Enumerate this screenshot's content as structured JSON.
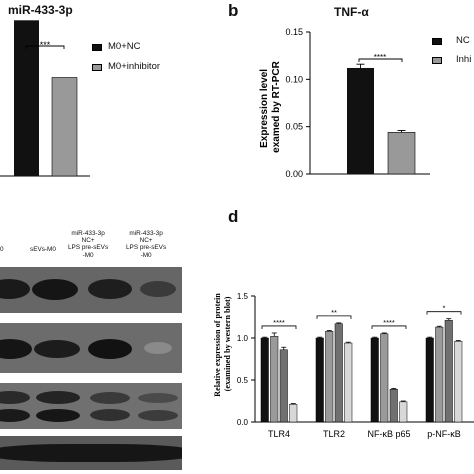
{
  "panel_a": {
    "title": "miR-433-3p",
    "significance": "***",
    "legend": [
      {
        "label": "M0+NC",
        "color": "#111111"
      },
      {
        "label": "M0+inhibitor",
        "color": "#999999"
      }
    ]
  },
  "panel_b": {
    "letter": "b",
    "title": "TNF-α",
    "ylabel_line1": "Expression level",
    "ylabel_line2": "examed by RT-PCR",
    "significance": "****",
    "legend": [
      {
        "label": "NC",
        "color": "#111111"
      },
      {
        "label": "Inhi",
        "color": "#999999"
      }
    ]
  },
  "panel_c": {
    "lanes": [
      {
        "lines": [
          "0"
        ]
      },
      {
        "lines": [
          "sEVs-M0"
        ]
      },
      {
        "lines": [
          "miR-433-3p",
          "NC+",
          "LPS pre-sEVs",
          "-M0"
        ]
      },
      {
        "lines": [
          "miR-433-3p",
          "NC+",
          "LPS pre-sEVs",
          "-M0"
        ]
      }
    ]
  },
  "panel_d": {
    "letter": "d",
    "ylabel_line1": "Relative expression of protein",
    "ylabel_line2": "(examined by western blot)",
    "significance": [
      "****",
      "**",
      "****",
      "*"
    ]
  },
  "chart_data": [
    {
      "type": "bar",
      "title": "miR-433-3p",
      "categories": [
        "M0+NC",
        "M0+inhibitor"
      ],
      "values": [
        0.98,
        0.62
      ],
      "colors": [
        "#111111",
        "#999999"
      ],
      "annotation": "***"
    },
    {
      "type": "bar",
      "title": "TNF-α",
      "ylabel": "Expression level examed by RT-PCR",
      "categories": [
        "NC",
        "Inhi"
      ],
      "values": [
        0.112,
        0.044
      ],
      "errors": [
        0.004,
        0.002
      ],
      "colors": [
        "#111111",
        "#999999"
      ],
      "yticks": [
        "0.00",
        "0.05",
        "0.10",
        "0.15"
      ],
      "ylim": [
        0,
        0.15
      ],
      "annotation": "****"
    },
    {
      "type": "bar",
      "ylabel": "Relative expression of protein (examined by western blot)",
      "categories": [
        "TLR4",
        "TLR2",
        "NF-κB p65",
        "p-NF-κB"
      ],
      "series": [
        {
          "values": [
            1.0,
            1.0,
            1.0,
            1.0
          ],
          "errors": [
            0.01,
            0.01,
            0.01,
            0.01
          ],
          "color": "#111111"
        },
        {
          "values": [
            1.02,
            1.08,
            1.05,
            1.13
          ],
          "errors": [
            0.04,
            0.01,
            0.01,
            0.01
          ],
          "color": "#9a9a9a"
        },
        {
          "values": [
            0.86,
            1.17,
            0.39,
            1.21
          ],
          "errors": [
            0.03,
            0.01,
            0.01,
            0.02
          ],
          "color": "#707070"
        },
        {
          "values": [
            0.21,
            0.94,
            0.24,
            0.96
          ],
          "errors": [
            0.01,
            0.01,
            0.01,
            0.01
          ],
          "color": "#d8d8d8"
        }
      ],
      "yticks": [
        "0.0",
        "0.5",
        "1.0",
        "1.5"
      ],
      "ylim": [
        0,
        1.5
      ],
      "annotations": [
        "****",
        "**",
        "****",
        "*"
      ]
    }
  ]
}
